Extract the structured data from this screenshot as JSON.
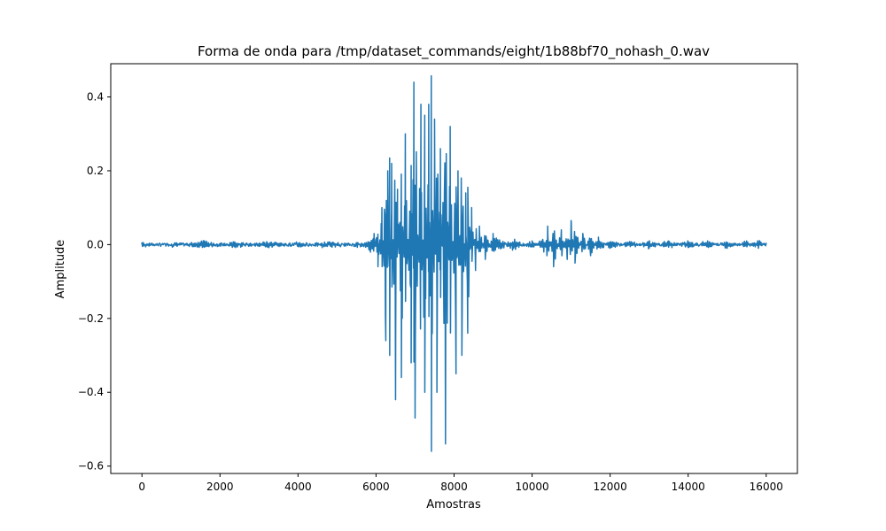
{
  "chart_data": {
    "type": "line",
    "title": "Forma de onda para /tmp/dataset_commands/eight/1b88bf70_nohash_0.wav",
    "xlabel": "Amostras",
    "ylabel": "Amplitude",
    "xlim": [
      -800,
      16800
    ],
    "ylim": [
      -0.62,
      0.49
    ],
    "xticks": [
      0,
      2000,
      4000,
      6000,
      8000,
      10000,
      12000,
      14000,
      16000
    ],
    "xtick_labels": [
      "0",
      "2000",
      "4000",
      "6000",
      "8000",
      "10000",
      "12000",
      "14000",
      "16000"
    ],
    "yticks": [
      -0.6,
      -0.4,
      -0.2,
      0.0,
      0.2,
      0.4
    ],
    "ytick_labels": [
      "−0.6",
      "−0.4",
      "−0.2",
      "0.0",
      "0.2",
      "0.4"
    ],
    "grid": false,
    "line_color": "#1f77b4",
    "series": [
      {
        "x": [
          0,
          800,
          1600,
          2400,
          3200,
          4000,
          4800,
          5600,
          5950,
          6050,
          6150,
          6250,
          6300,
          6350,
          6400,
          6500,
          6550,
          6650,
          6750,
          6900,
          6970,
          7000,
          7150,
          7250,
          7350,
          7420,
          7500,
          7560,
          7650,
          7780,
          7900,
          8050,
          8100,
          8200,
          8300,
          8350,
          8450,
          8550,
          8650,
          8800,
          9000,
          9500,
          10000,
          10300,
          10400,
          10550,
          10750,
          10900,
          11000,
          11100,
          11300,
          11500,
          11700,
          12000,
          12500,
          13000,
          13500,
          14000,
          14500,
          15000,
          15500,
          15800,
          16000
        ],
        "y": [
          0.005,
          -0.005,
          0.01,
          -0.008,
          0.008,
          -0.005,
          0.007,
          -0.006,
          0.03,
          -0.06,
          0.1,
          -0.26,
          0.2,
          -0.3,
          0.22,
          -0.42,
          0.15,
          -0.36,
          0.3,
          -0.32,
          0.44,
          -0.47,
          0.38,
          -0.4,
          0.38,
          -0.56,
          0.34,
          -0.4,
          0.26,
          -0.54,
          0.32,
          -0.35,
          0.2,
          -0.3,
          0.14,
          -0.24,
          0.1,
          -0.07,
          0.05,
          -0.04,
          0.03,
          -0.015,
          0.01,
          -0.02,
          0.05,
          -0.06,
          0.04,
          -0.04,
          0.065,
          -0.05,
          0.03,
          -0.03,
          0.02,
          -0.01,
          0.008,
          -0.01,
          0.01,
          -0.008,
          0.01,
          -0.01,
          0.01,
          -0.01,
          0.005
        ]
      }
    ]
  }
}
